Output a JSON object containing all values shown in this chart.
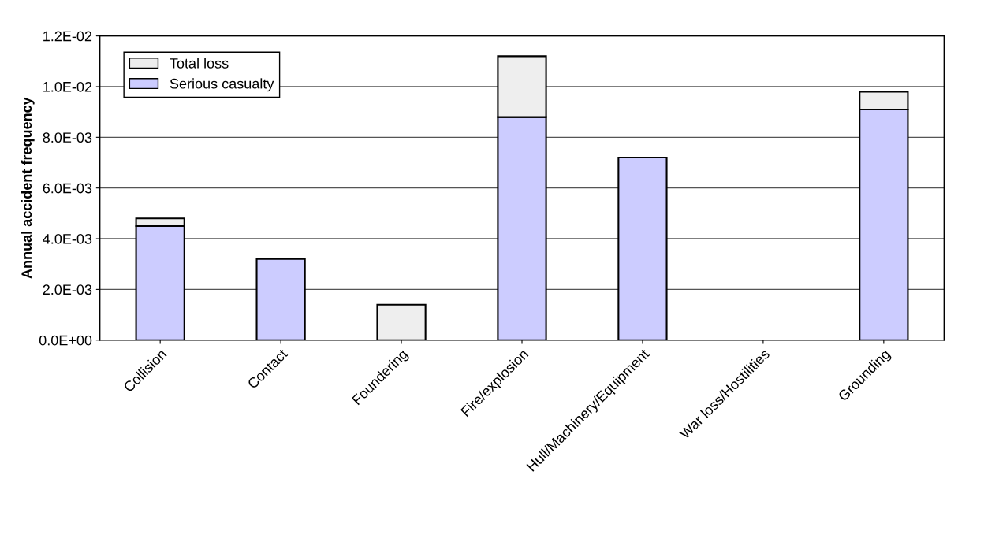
{
  "chart_data": {
    "type": "bar",
    "stacked": true,
    "ylabel": "Annual accident frequency",
    "categories": [
      "Collision",
      "Contact",
      "Foundering",
      "Fire/explosion",
      "Hull/Machinery/Equipment",
      "War loss/Hostilities",
      "Grounding"
    ],
    "series": [
      {
        "name": "Serious casualty",
        "color": "#ccccff",
        "values": [
          0.0045,
          0.0032,
          null,
          0.0088,
          0.0072,
          null,
          0.0091
        ]
      },
      {
        "name": "Total loss",
        "color": "#eeeeee",
        "values": [
          0.0003,
          null,
          0.0014,
          0.0024,
          null,
          null,
          0.0007
        ]
      }
    ],
    "ylim": [
      0,
      0.012
    ],
    "yticks": [
      {
        "value": 0,
        "label": "0.0E+00"
      },
      {
        "value": 0.002,
        "label": "2.0E-03"
      },
      {
        "value": 0.004,
        "label": "4.0E-03"
      },
      {
        "value": 0.006,
        "label": "6.0E-03"
      },
      {
        "value": 0.008,
        "label": "8.0E-03"
      },
      {
        "value": 0.01,
        "label": "1.0E-02"
      },
      {
        "value": 0.012,
        "label": "1.2E-02"
      }
    ],
    "grid": "y",
    "legend": "top left"
  }
}
